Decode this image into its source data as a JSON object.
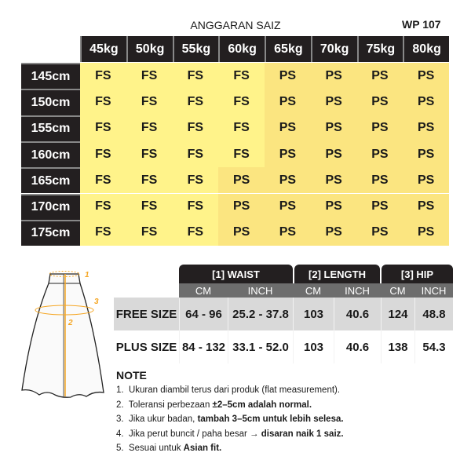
{
  "title": "ANGGARAN SAIZ",
  "code": "WP 107",
  "colors": {
    "fs": "#fff38a",
    "ps": "#fbe580",
    "header": "#231f20",
    "accent": "#f5a623"
  },
  "weights": [
    "45kg",
    "50kg",
    "55kg",
    "60kg",
    "65kg",
    "70kg",
    "75kg",
    "80kg"
  ],
  "heights": [
    "145cm",
    "150cm",
    "155cm",
    "160cm",
    "165cm",
    "170cm",
    "175cm"
  ],
  "grid": [
    [
      "FS",
      "FS",
      "FS",
      "FS",
      "PS",
      "PS",
      "PS",
      "PS"
    ],
    [
      "FS",
      "FS",
      "FS",
      "FS",
      "PS",
      "PS",
      "PS",
      "PS"
    ],
    [
      "FS",
      "FS",
      "FS",
      "FS",
      "PS",
      "PS",
      "PS",
      "PS"
    ],
    [
      "FS",
      "FS",
      "FS",
      "FS",
      "PS",
      "PS",
      "PS",
      "PS"
    ],
    [
      "FS",
      "FS",
      "FS",
      "PS",
      "PS",
      "PS",
      "PS",
      "PS"
    ],
    [
      "FS",
      "FS",
      "FS",
      "PS",
      "PS",
      "PS",
      "PS",
      "PS"
    ],
    [
      "FS",
      "FS",
      "FS",
      "PS",
      "PS",
      "PS",
      "PS",
      "PS"
    ]
  ],
  "diagram_labels": [
    "1",
    "2",
    "3"
  ],
  "measure": {
    "groups": [
      "[1] WAIST",
      "[2] LENGTH",
      "[3] HIP"
    ],
    "sub": [
      "CM",
      "INCH",
      "CM",
      "INCH",
      "CM",
      "INCH"
    ],
    "rows": [
      {
        "label": "FREE SIZE",
        "values": [
          "64 - 96",
          "25.2 - 37.8",
          "103",
          "40.6",
          "124",
          "48.8"
        ]
      },
      {
        "label": "PLUS SIZE",
        "values": [
          "84 - 132",
          "33.1 - 52.0",
          "103",
          "40.6",
          "138",
          "54.3"
        ]
      }
    ]
  },
  "note": {
    "title": "NOTE",
    "items": [
      {
        "n": "1.",
        "text": "Ukuran diambil terus dari produk (flat measurement).",
        "bold": ""
      },
      {
        "n": "2.",
        "text": "Toleransi perbezaan ",
        "bold": "±2–5cm adalah normal."
      },
      {
        "n": "3.",
        "text": "Jika ukur badan, ",
        "bold": "tambah 3–5cm untuk lebih selesa."
      },
      {
        "n": "4.",
        "text": "Jika perut buncit / paha besar → ",
        "bold": "disaran naik 1 saiz."
      },
      {
        "n": "5.",
        "text": "Sesuai untuk ",
        "bold": "Asian fit."
      }
    ]
  }
}
